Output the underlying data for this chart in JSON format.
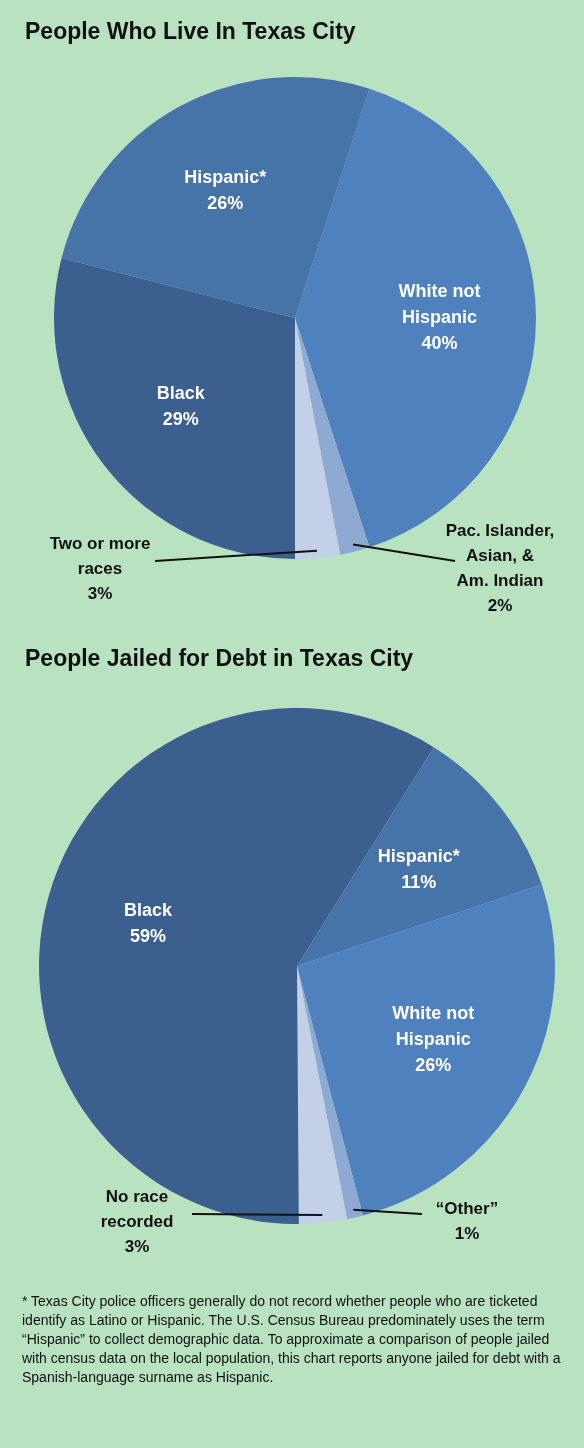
{
  "chart_data": [
    {
      "type": "pie",
      "title": "People Who Live In Texas City",
      "categories": [
        "White not\nHispanic",
        "Pac. Islander,\nAsian, &\nAm. Indian",
        "Two or more\nraces",
        "Black",
        "Hispanic*"
      ],
      "values": [
        40,
        2,
        3,
        29,
        26
      ],
      "value_labels": [
        "40%",
        "2%",
        "3%",
        "29%",
        "26%"
      ],
      "colors": [
        "#4e81be",
        "#8ea9d2",
        "#c3d0e8",
        "#3b5f8e",
        "#4673a8"
      ]
    },
    {
      "type": "pie",
      "title": "People Jailed for Debt in Texas City",
      "categories": [
        "Hispanic*",
        "White not\nHispanic",
        "“Other”",
        "No race\nrecorded",
        "Black"
      ],
      "values": [
        11,
        26,
        1,
        3,
        59
      ],
      "value_labels": [
        "11%",
        "26%",
        "1%",
        "3%",
        "59%"
      ],
      "colors": [
        "#4673a8",
        "#4e81be",
        "#8ea9d2",
        "#c3d0e8",
        "#3b5f8e"
      ],
      "annotations": [
        "*  Texas City police officers generally do not record whether people who are ticketed identify as Latino or Hispanic. The U.S. Census Bureau predominately uses the term “Hispanic” to collect demographic data. To approximate a comparison of people jailed with census data on the local population, this chart reports anyone jailed for debt with a Spanish-language surname as Hispanic."
      ]
    }
  ]
}
